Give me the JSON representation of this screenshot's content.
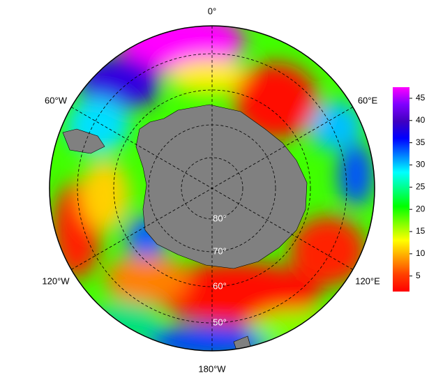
{
  "map": {
    "longitude_labels": [
      "0°",
      "60°E",
      "120°E",
      "180°W",
      "120°W",
      "60°W"
    ],
    "latitude_labels": [
      "80°",
      "70°",
      "60°",
      "50°"
    ],
    "colorbar": {
      "range": [
        1.5,
        47.5
      ],
      "ticks": [
        5,
        10,
        15,
        20,
        25,
        30,
        35,
        40,
        45
      ],
      "colors": [
        "#ff0000",
        "#ff4000",
        "#ffa000",
        "#ffff00",
        "#80ff00",
        "#00ff00",
        "#00ff80",
        "#00ffff",
        "#0080ff",
        "#0000ff",
        "#4000c0",
        "#8000ff",
        "#ff00ff"
      ]
    }
  }
}
